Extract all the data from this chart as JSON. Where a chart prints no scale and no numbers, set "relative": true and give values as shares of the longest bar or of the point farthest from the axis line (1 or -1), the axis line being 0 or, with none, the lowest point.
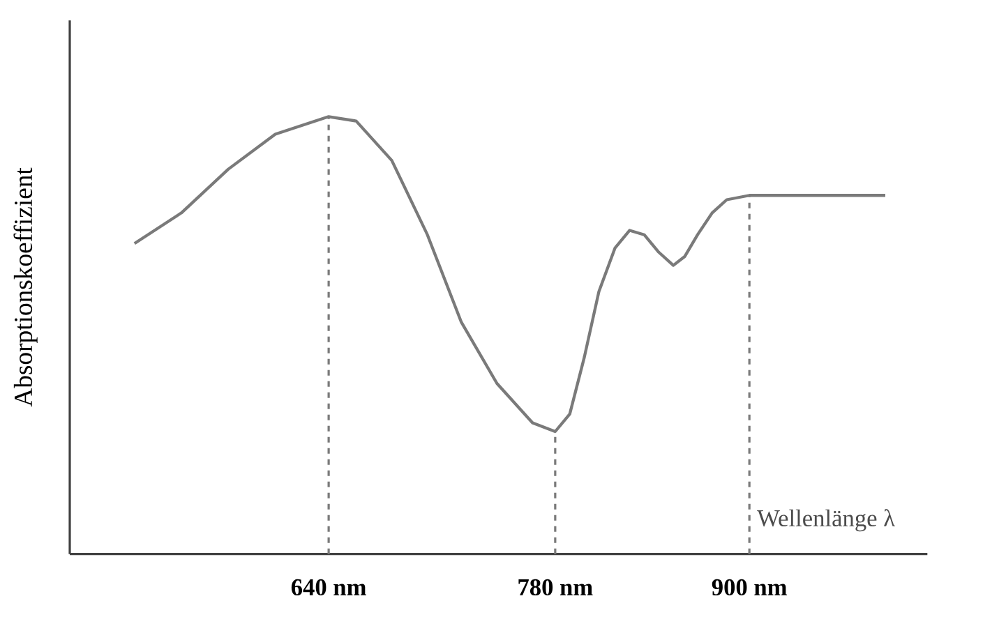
{
  "chart_data": {
    "type": "line",
    "xlabel": "Wellenlänge λ",
    "ylabel": "Absorptionskoeffizient",
    "relative": true,
    "color": "#7a7a7a",
    "marker": "none",
    "line_style": "solid",
    "x": [
      520,
      549,
      578,
      607,
      640,
      657,
      679,
      701,
      722,
      744,
      766,
      780,
      789,
      798,
      807,
      817,
      826,
      835,
      844,
      853,
      860,
      868,
      877,
      886,
      900,
      932,
      984
    ],
    "values": [
      0.71,
      0.78,
      0.88,
      0.96,
      1.0,
      0.99,
      0.9,
      0.73,
      0.53,
      0.39,
      0.3,
      0.28,
      0.32,
      0.45,
      0.6,
      0.7,
      0.74,
      0.73,
      0.69,
      0.66,
      0.68,
      0.73,
      0.78,
      0.81,
      0.82,
      0.82,
      0.82
    ],
    "xlim": [
      480,
      1010
    ],
    "xticks": [
      {
        "value": 640,
        "label": "640 nm"
      },
      {
        "value": 780,
        "label": "780 nm"
      },
      {
        "value": 900,
        "label": "900 nm"
      }
    ],
    "ref_lines": [
      {
        "axis": "x",
        "value": 640,
        "color": "#7a7a7a",
        "line_style": "dashed"
      },
      {
        "axis": "x",
        "value": 780,
        "color": "#7a7a7a",
        "line_style": "dashed"
      },
      {
        "axis": "x",
        "value": 900,
        "color": "#7a7a7a",
        "line_style": "dashed"
      }
    ]
  }
}
